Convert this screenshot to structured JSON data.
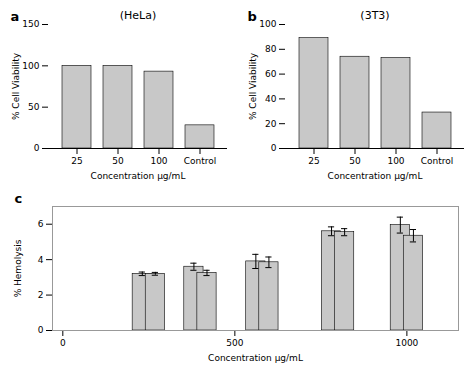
{
  "chart_data": [
    {
      "type": "bar",
      "label": "a",
      "title": "(HeLa)",
      "categories": [
        "25",
        "50",
        "100",
        "Control"
      ],
      "values": [
        100,
        100,
        93,
        28
      ],
      "xlabel": "Concentration μg/mL",
      "ylabel": "% Cell Viability",
      "ylim": [
        0,
        150
      ],
      "yticks": [
        0,
        50,
        100,
        150
      ],
      "color": "#c8c8c8"
    },
    {
      "type": "bar",
      "label": "b",
      "title": "(3T3)",
      "categories": [
        "25",
        "50",
        "100",
        "Control"
      ],
      "values": [
        89,
        74,
        73,
        29
      ],
      "xlabel": "Concentration μg/mL",
      "ylabel": "% Cell Viability",
      "ylim": [
        0,
        100
      ],
      "yticks": [
        0,
        20,
        40,
        60,
        80,
        100
      ],
      "color": "#c8c8c8"
    },
    {
      "type": "bar",
      "label": "c",
      "xlabel": "Concentration μg/mL",
      "ylabel": "% Hemolysis",
      "xlim": [
        -30,
        1150
      ],
      "xticks": [
        0,
        500,
        1000
      ],
      "ylim": [
        0,
        7
      ],
      "yticks": [
        0,
        2,
        4,
        6
      ],
      "color": "#c8c8c8",
      "series": [
        {
          "x": [
            231,
            381,
            561,
            781,
            981
          ],
          "values": [
            3.2,
            3.6,
            3.9,
            5.6,
            5.95
          ],
          "errors": [
            0.1,
            0.2,
            0.4,
            0.25,
            0.45
          ]
        },
        {
          "x": [
            269,
            419,
            599,
            819,
            1019
          ],
          "values": [
            3.2,
            3.25,
            3.85,
            5.55,
            5.35
          ],
          "errors": [
            0.08,
            0.15,
            0.3,
            0.2,
            0.35
          ]
        }
      ]
    }
  ]
}
